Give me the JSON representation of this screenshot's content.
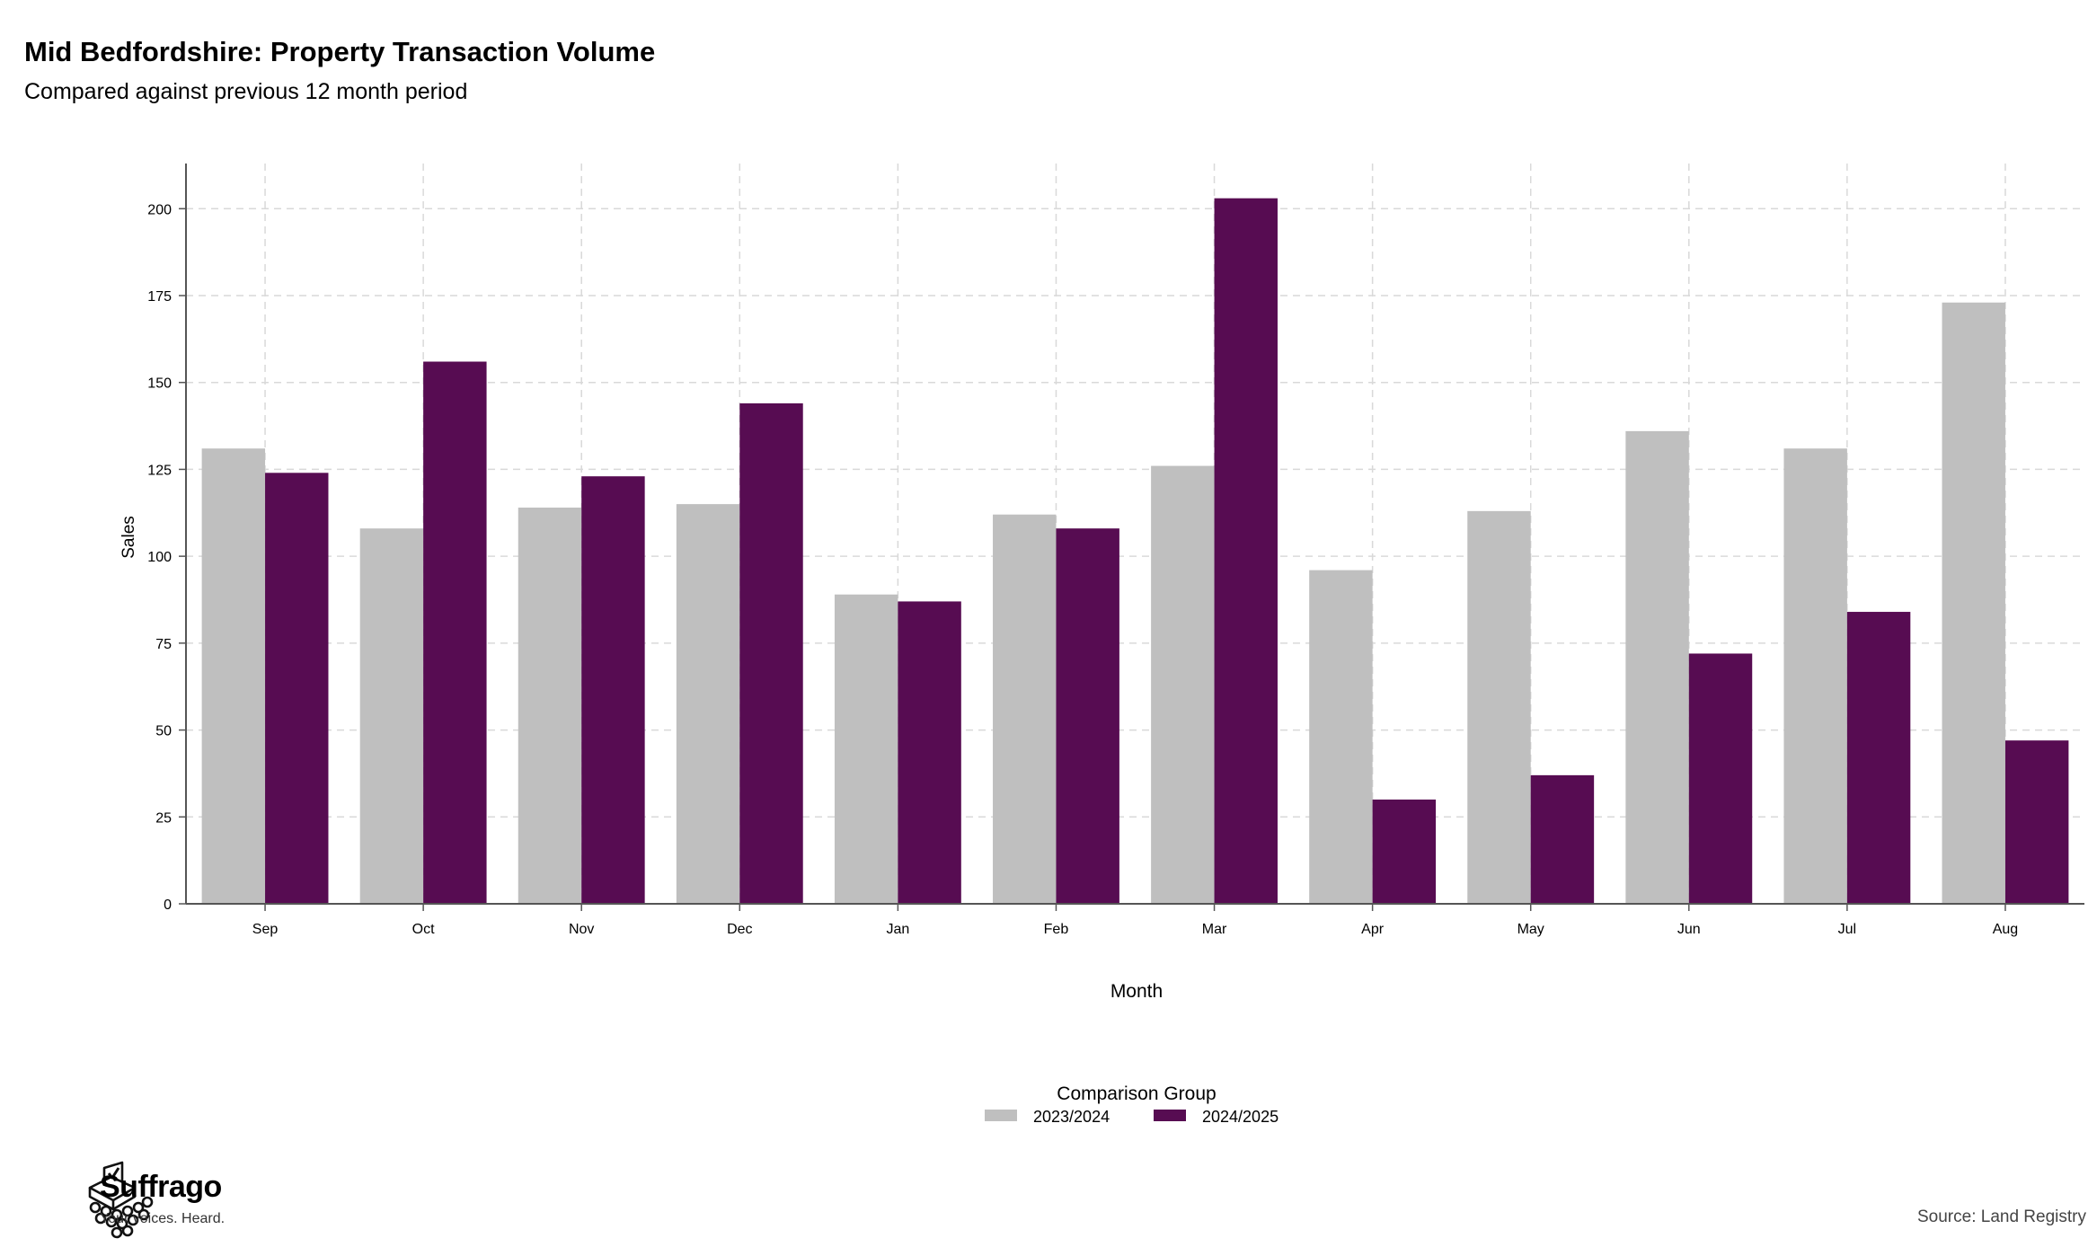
{
  "chart_data": {
    "type": "bar",
    "title": "Mid Bedfordshire: Property Transaction Volume",
    "subtitle": "Compared against previous 12 month period",
    "xlabel": "Month",
    "ylabel": "Sales",
    "ylim": [
      0,
      213
    ],
    "yticks": [
      0,
      25,
      50,
      75,
      100,
      125,
      150,
      175,
      200
    ],
    "categories": [
      "Sep",
      "Oct",
      "Nov",
      "Dec",
      "Jan",
      "Feb",
      "Mar",
      "Apr",
      "May",
      "Jun",
      "Jul",
      "Aug"
    ],
    "series": [
      {
        "name": "2023/2024",
        "color": "#bfbfbf",
        "values": [
          131,
          108,
          114,
          115,
          89,
          112,
          126,
          96,
          113,
          136,
          131,
          173
        ]
      },
      {
        "name": "2024/2025",
        "color": "#570c52",
        "values": [
          124,
          156,
          123,
          144,
          87,
          108,
          203,
          30,
          37,
          72,
          84,
          47
        ]
      }
    ],
    "grid": true,
    "legend_title": "Comparison Group",
    "legend_position": "bottom"
  },
  "branding": {
    "name": "Suffrago",
    "tagline": "Your voices. Heard."
  },
  "source": "Source: Land Registry"
}
